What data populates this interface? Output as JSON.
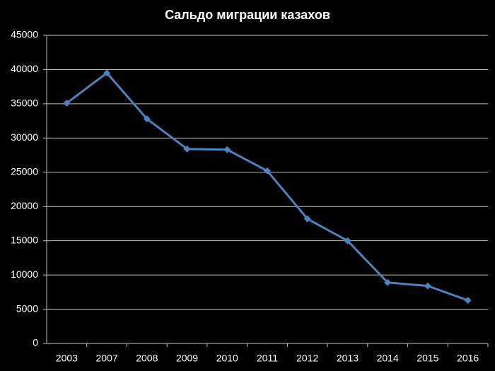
{
  "chart_data": {
    "type": "line",
    "title": "Сальдо миграции казахов",
    "categories": [
      "2003",
      "2007",
      "2008",
      "2009",
      "2010",
      "2011",
      "2012",
      "2013",
      "2014",
      "2015",
      "2016"
    ],
    "series": [
      {
        "name": "Сальдо миграции казахов",
        "color": "#4f81bd",
        "values": [
          35100,
          39500,
          32800,
          28400,
          28300,
          25200,
          18200,
          15000,
          8900,
          8400,
          6300
        ]
      }
    ],
    "ylim": [
      0,
      45000
    ],
    "yticks": [
      0,
      5000,
      10000,
      15000,
      20000,
      25000,
      30000,
      35000,
      40000,
      45000
    ],
    "grid": true
  }
}
